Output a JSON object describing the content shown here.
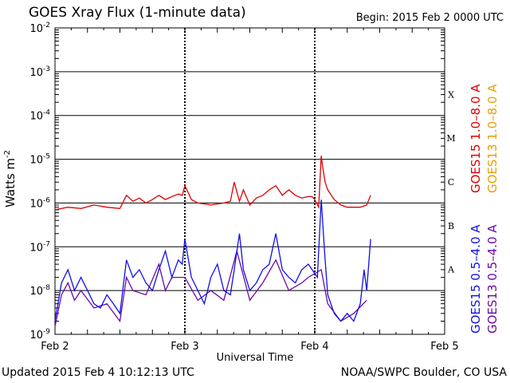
{
  "header": {
    "title": "GOES Xray Flux (1-minute data)",
    "begin": "Begin:  2015 Feb 2 0000 UTC"
  },
  "footer": {
    "updated": "Updated 2015 Feb  4 10:12:13 UTC",
    "credit": "NOAA/SWPC Boulder, CO USA"
  },
  "colors": {
    "goes15_long": "#e00000",
    "goes13_long": "#e8a000",
    "goes15_short": "#1010e8",
    "goes13_short": "#6a0aa8"
  },
  "chart_data": {
    "type": "line",
    "title": "GOES Xray Flux (1-minute data)",
    "xlabel": "Universal Time",
    "ylabel": "Watts m",
    "ylabel_exponent": "-2",
    "yscale": "log",
    "ylim": [
      1e-09,
      0.01
    ],
    "xlim_days": [
      0,
      3
    ],
    "grid": true,
    "x_ticks": [
      {
        "day": 0,
        "label": "Feb 2"
      },
      {
        "day": 1,
        "label": "Feb 3"
      },
      {
        "day": 2,
        "label": "Feb 4"
      },
      {
        "day": 3,
        "label": "Feb 5"
      }
    ],
    "y_ticks": [
      {
        "value": 1e-09,
        "label": "10",
        "exp": "-9"
      },
      {
        "value": 1e-08,
        "label": "10",
        "exp": "-8"
      },
      {
        "value": 1e-07,
        "label": "10",
        "exp": "-7"
      },
      {
        "value": 1e-06,
        "label": "10",
        "exp": "-6"
      },
      {
        "value": 1e-05,
        "label": "10",
        "exp": "-5"
      },
      {
        "value": 0.0001,
        "label": "10",
        "exp": "-4"
      },
      {
        "value": 0.001,
        "label": "10",
        "exp": "-3"
      },
      {
        "value": 0.01,
        "label": "10",
        "exp": "-2"
      }
    ],
    "flare_classes": [
      {
        "label": "A",
        "low": 1e-08
      },
      {
        "label": "B",
        "low": 1e-07
      },
      {
        "label": "C",
        "low": 1e-06
      },
      {
        "label": "M",
        "low": 1e-05
      },
      {
        "label": "X",
        "low": 0.0001
      }
    ],
    "legend": [
      "GOES15 1.0–8.0 A",
      "GOES13 1.0–8.0 A",
      "GOES15 0.5–4.0 A",
      "GOES13 0.5–4.0 A"
    ],
    "series": [
      {
        "name": "GOES15 1.0–8.0 A",
        "x_days": [
          0,
          0.1,
          0.2,
          0.3,
          0.4,
          0.5,
          0.55,
          0.6,
          0.65,
          0.7,
          0.75,
          0.8,
          0.85,
          0.9,
          0.95,
          0.98,
          1.0,
          1.05,
          1.1,
          1.2,
          1.3,
          1.35,
          1.38,
          1.42,
          1.45,
          1.5,
          1.55,
          1.6,
          1.65,
          1.7,
          1.75,
          1.8,
          1.85,
          1.9,
          1.95,
          1.98,
          2.0,
          2.03,
          2.05,
          2.06,
          2.08,
          2.1,
          2.15,
          2.2,
          2.25,
          2.3,
          2.35,
          2.4,
          2.43
        ],
        "y": [
          7e-07,
          8e-07,
          7.5e-07,
          9e-07,
          8e-07,
          7.5e-07,
          1.5e-06,
          1.1e-06,
          1.3e-06,
          1e-06,
          1.2e-06,
          1.5e-06,
          1.2e-06,
          1.4e-06,
          1.6e-06,
          1.5e-06,
          2.5e-06,
          1.2e-06,
          1e-06,
          9e-07,
          1e-06,
          1.1e-06,
          3e-06,
          1.1e-06,
          2e-06,
          9e-07,
          1.3e-06,
          1.5e-06,
          2e-06,
          2.5e-06,
          1.5e-06,
          2e-06,
          1.5e-06,
          1.3e-06,
          1.4e-06,
          1.4e-06,
          1.2e-06,
          8e-07,
          1.2e-05,
          7e-06,
          3e-06,
          2e-06,
          1.2e-06,
          9e-07,
          8e-07,
          8e-07,
          8e-07,
          9e-07,
          1.5e-06
        ]
      },
      {
        "name": "GOES15 0.5–4.0 A",
        "x_days": [
          0,
          0.05,
          0.1,
          0.15,
          0.2,
          0.25,
          0.3,
          0.35,
          0.4,
          0.45,
          0.5,
          0.55,
          0.6,
          0.65,
          0.7,
          0.75,
          0.8,
          0.85,
          0.9,
          0.95,
          0.98,
          1.0,
          1.05,
          1.1,
          1.15,
          1.2,
          1.25,
          1.3,
          1.35,
          1.38,
          1.42,
          1.45,
          1.5,
          1.55,
          1.6,
          1.65,
          1.7,
          1.75,
          1.8,
          1.85,
          1.9,
          1.95,
          1.98,
          2.02,
          2.05,
          2.08,
          2.1,
          2.15,
          2.2,
          2.25,
          2.3,
          2.35,
          2.38,
          2.4,
          2.43
        ],
        "y": [
          2e-09,
          1.5e-08,
          3e-08,
          1e-08,
          2e-08,
          1e-08,
          5e-09,
          4e-09,
          8e-09,
          5e-09,
          3e-09,
          5e-08,
          2e-08,
          3e-08,
          1.5e-08,
          1e-08,
          3e-08,
          8e-08,
          2e-08,
          5e-08,
          4e-08,
          1.5e-07,
          2e-08,
          1e-08,
          5e-09,
          2e-08,
          4e-08,
          1e-08,
          8e-09,
          3e-08,
          2e-07,
          3e-08,
          1e-08,
          1.5e-08,
          3e-08,
          4e-08,
          2e-07,
          3e-08,
          2e-08,
          1.5e-08,
          3e-08,
          4e-08,
          3e-08,
          2e-08,
          1.2e-06,
          5e-08,
          8e-09,
          3e-09,
          2e-09,
          3e-09,
          2e-09,
          5e-09,
          3e-08,
          1e-08,
          1.5e-07
        ]
      },
      {
        "name": "GOES13 0.5–4.0 A",
        "x_days": [
          0,
          0.05,
          0.1,
          0.15,
          0.2,
          0.3,
          0.4,
          0.5,
          0.55,
          0.6,
          0.7,
          0.8,
          0.85,
          0.9,
          1.0,
          1.1,
          1.2,
          1.3,
          1.4,
          1.5,
          1.6,
          1.7,
          1.8,
          1.9,
          1.95,
          2.05,
          2.1,
          2.2,
          2.3,
          2.4
        ],
        "y": [
          1.5e-09,
          8e-09,
          1.5e-08,
          6e-09,
          1e-08,
          4e-09,
          5e-09,
          2e-09,
          2e-08,
          1e-08,
          8e-09,
          4e-08,
          1e-08,
          2e-08,
          2e-08,
          6e-09,
          1e-08,
          6e-09,
          8e-08,
          6e-09,
          1.5e-08,
          5e-08,
          1e-08,
          1.5e-08,
          2e-08,
          3e-08,
          5e-09,
          2e-09,
          3e-09,
          6e-09
        ]
      }
    ]
  },
  "legend_labels": {
    "g15_long": "GOES15 1.0–8.0 A",
    "g13_long": "GOES13 1.0–8.0 A",
    "g15_short": "GOES15 0.5–4.0 A",
    "g13_short": "GOES13 0.5–4.0 A"
  }
}
